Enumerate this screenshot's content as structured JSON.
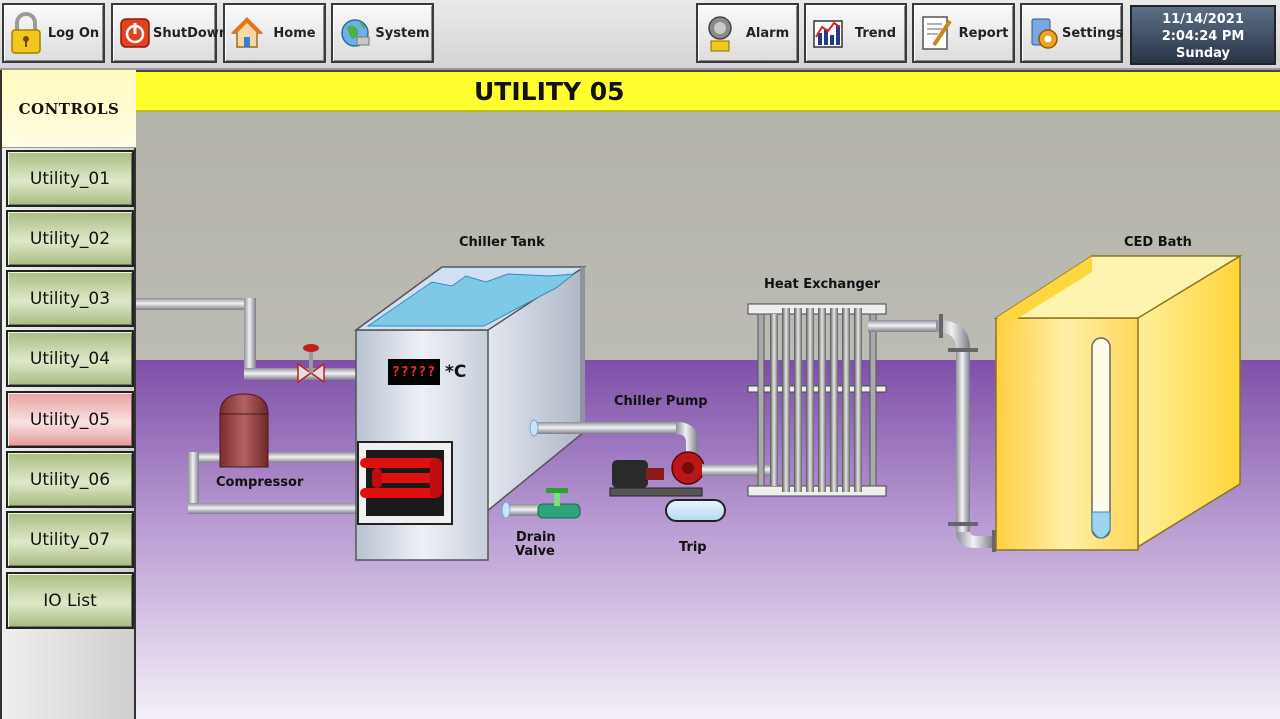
{
  "toolbar": {
    "buttons": [
      {
        "label": "Log On",
        "icon": "padlock-icon"
      },
      {
        "label": "ShutDown",
        "icon": "power-icon"
      },
      {
        "label": "Home",
        "icon": "house-icon"
      },
      {
        "label": "System",
        "icon": "globe-icon"
      },
      {
        "label": "Alarm",
        "icon": "bell-icon"
      },
      {
        "label": "Trend",
        "icon": "trend-chart-icon"
      },
      {
        "label": "Report",
        "icon": "report-pen-icon"
      },
      {
        "label": "Settings",
        "icon": "settings-icon"
      }
    ],
    "date": "11/14/2021",
    "time": "2:04:24 PM",
    "day": "Sunday"
  },
  "sidebar": {
    "title": "CONTROLS",
    "items": [
      {
        "label": "Utility_01",
        "active": false
      },
      {
        "label": "Utility_02",
        "active": false
      },
      {
        "label": "Utility_03",
        "active": false
      },
      {
        "label": "Utility_04",
        "active": false
      },
      {
        "label": "Utility_05",
        "active": true
      },
      {
        "label": "Utility_06",
        "active": false
      },
      {
        "label": "Utility_07",
        "active": false
      },
      {
        "label": "IO List",
        "active": false
      }
    ]
  },
  "main": {
    "title": "UTILITY 05",
    "labels": {
      "chiller_tank": "Chiller Tank",
      "ced_bath": "CED Bath",
      "heat_exchanger": "Heat Exchanger",
      "chiller_pump": "Chiller Pump",
      "compressor": "Compressor",
      "drain_valve_line1": "Drain",
      "drain_valve_line2": "Valve",
      "trip": "Trip"
    },
    "temperature": {
      "value": "?????",
      "unit": "*C"
    }
  },
  "colors": {
    "title_bar": "#ffff2f",
    "nav_button": "#c4d4a6",
    "nav_active": "#f2bcbc",
    "floor": "#8a5cb0",
    "wall": "#b9b8b0",
    "bath": "#ffd640",
    "heater_coil": "#e01010"
  }
}
